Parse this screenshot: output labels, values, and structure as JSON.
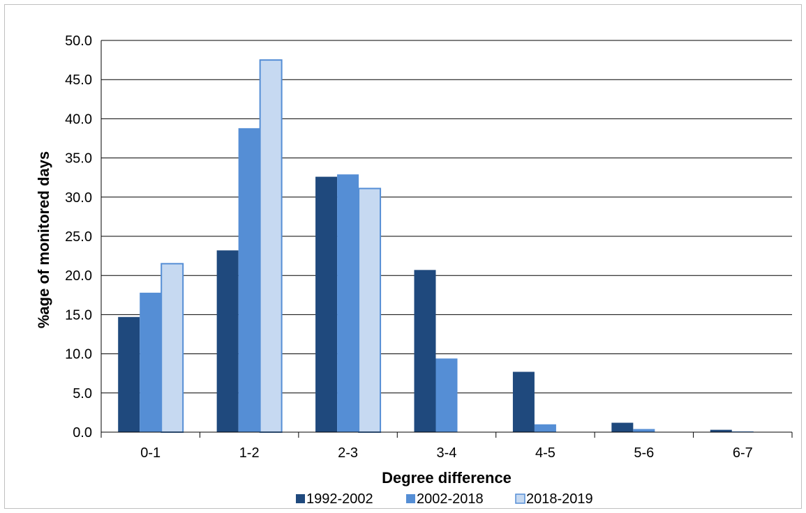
{
  "chart_data": {
    "type": "bar",
    "title": "",
    "xlabel": "Degree difference",
    "ylabel": "%age of monitored days",
    "categories": [
      "0-1",
      "1-2",
      "2-3",
      "3-4",
      "4-5",
      "5-6",
      "6-7"
    ],
    "ylim": [
      0,
      50
    ],
    "yticks": [
      "0.0",
      "5.0",
      "10.0",
      "15.0",
      "20.0",
      "25.0",
      "30.0",
      "35.0",
      "40.0",
      "45.0",
      "50.0"
    ],
    "grid": true,
    "legend_position": "bottom",
    "series": [
      {
        "name": "1992-2002",
        "color": "#1f497d",
        "values": [
          14.7,
          23.2,
          32.6,
          20.7,
          7.7,
          1.2,
          0.3
        ]
      },
      {
        "name": "2002-2018",
        "color": "#558ed5",
        "values": [
          17.8,
          38.8,
          32.9,
          9.4,
          1.0,
          0.4,
          0.1
        ]
      },
      {
        "name": "2018-2019",
        "color": "#c6d9f1",
        "stroke": "#558ed5",
        "values": [
          21.5,
          47.5,
          31.1,
          0,
          0,
          0,
          0
        ]
      }
    ]
  }
}
